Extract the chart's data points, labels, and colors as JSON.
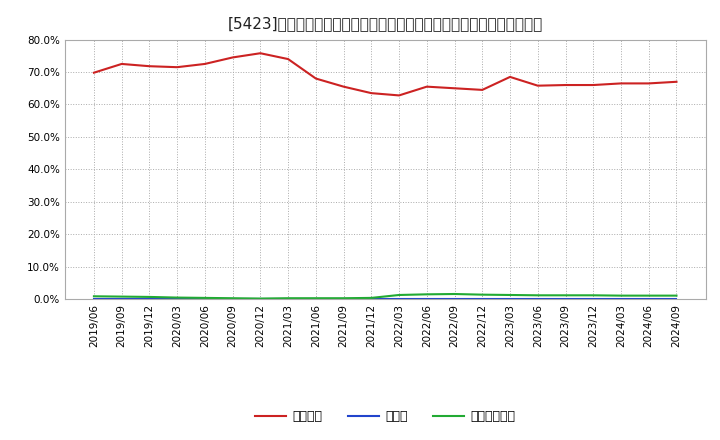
{
  "title": "[5423]　自己資本、のれん、繰延税金資産の総資産に対する比率の推移",
  "x_labels": [
    "2019/06",
    "2019/09",
    "2019/12",
    "2020/03",
    "2020/06",
    "2020/09",
    "2020/12",
    "2021/03",
    "2021/06",
    "2021/09",
    "2021/12",
    "2022/03",
    "2022/06",
    "2022/09",
    "2022/12",
    "2023/03",
    "2023/06",
    "2023/09",
    "2023/12",
    "2024/03",
    "2024/06",
    "2024/09"
  ],
  "equity_ratio": [
    69.8,
    72.5,
    71.8,
    71.5,
    72.5,
    74.5,
    75.8,
    74.0,
    68.0,
    65.5,
    63.5,
    62.8,
    65.5,
    65.0,
    64.5,
    68.5,
    65.8,
    66.0,
    66.0,
    66.5,
    66.5,
    67.0
  ],
  "noren_ratio": [
    0.0,
    0.0,
    0.0,
    0.0,
    0.0,
    0.0,
    0.0,
    0.0,
    0.0,
    0.0,
    0.0,
    0.0,
    0.0,
    0.0,
    0.0,
    0.0,
    0.0,
    0.0,
    0.0,
    0.0,
    0.0,
    0.0
  ],
  "deferred_tax_ratio": [
    0.9,
    0.8,
    0.7,
    0.5,
    0.4,
    0.3,
    0.2,
    0.3,
    0.3,
    0.3,
    0.4,
    1.3,
    1.5,
    1.6,
    1.4,
    1.3,
    1.2,
    1.2,
    1.2,
    1.1,
    1.1,
    1.1
  ],
  "equity_color": "#cc2222",
  "noren_color": "#2244cc",
  "deferred_tax_color": "#22aa33",
  "background_color": "#ffffff",
  "plot_bg_color": "#ffffff",
  "grid_color": "#aaaaaa",
  "ylim": [
    0,
    80
  ],
  "yticks": [
    0,
    10,
    20,
    30,
    40,
    50,
    60,
    70,
    80
  ],
  "legend_labels": [
    "自己資本",
    "のれん",
    "繰延税金資産"
  ],
  "title_fontsize": 11,
  "tick_fontsize": 7.5,
  "legend_fontsize": 9
}
